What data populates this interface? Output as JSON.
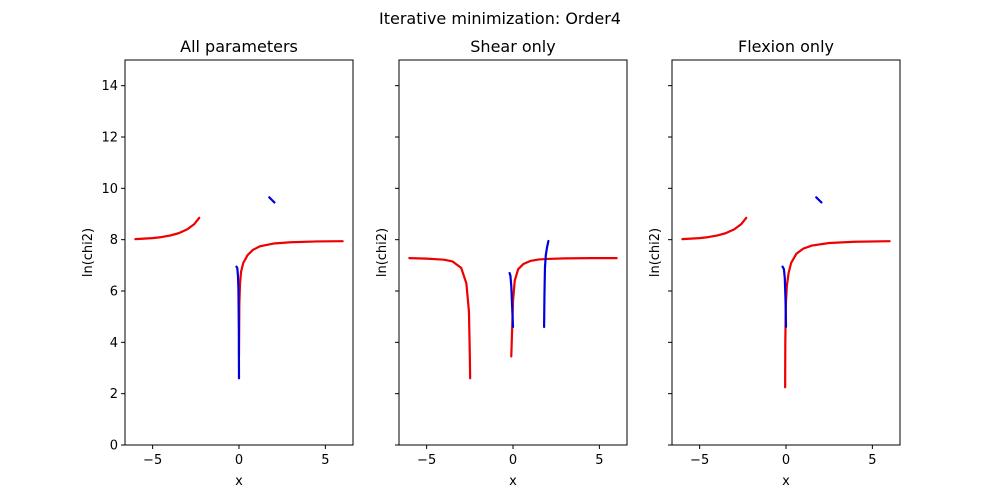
{
  "figure": {
    "title": "Iterative minimization: Order4",
    "colors": {
      "red": "#ee0000",
      "blue": "#0000dd",
      "axis": "#000000",
      "background": "#ffffff"
    }
  },
  "chart_data": [
    {
      "type": "line",
      "title": "All parameters",
      "xlabel": "x",
      "ylabel": "ln(chi2)",
      "xlim": [
        -6.6,
        6.6
      ],
      "ylim": [
        0,
        15
      ],
      "xticks": [
        -5,
        0,
        5
      ],
      "yticks": [
        0,
        2,
        4,
        6,
        8,
        10,
        12,
        14
      ],
      "show_yticklabels": true,
      "grid": false,
      "series": [
        {
          "color": "red",
          "points": [
            [
              -6.0,
              8.02
            ],
            [
              -5.5,
              8.04
            ],
            [
              -5.0,
              8.06
            ],
            [
              -4.5,
              8.1
            ],
            [
              -4.0,
              8.16
            ],
            [
              -3.5,
              8.25
            ],
            [
              -3.0,
              8.4
            ],
            [
              -2.6,
              8.6
            ],
            [
              -2.3,
              8.85
            ]
          ]
        },
        {
          "color": "red",
          "points": [
            [
              0.0,
              3.5
            ],
            [
              0.02,
              5.5
            ],
            [
              0.06,
              6.3
            ],
            [
              0.12,
              6.75
            ],
            [
              0.25,
              7.1
            ],
            [
              0.5,
              7.4
            ],
            [
              0.8,
              7.6
            ],
            [
              1.2,
              7.74
            ],
            [
              2.0,
              7.85
            ],
            [
              3.0,
              7.9
            ],
            [
              4.5,
              7.93
            ],
            [
              6.0,
              7.94
            ]
          ]
        },
        {
          "color": "blue",
          "points": [
            [
              -0.15,
              6.95
            ],
            [
              -0.1,
              6.9
            ],
            [
              -0.06,
              6.6
            ],
            [
              -0.03,
              6.0
            ],
            [
              -0.01,
              4.5
            ],
            [
              0.0,
              2.6
            ]
          ]
        },
        {
          "color": "blue",
          "points": [
            [
              1.75,
              9.65
            ],
            [
              1.9,
              9.55
            ],
            [
              2.05,
              9.45
            ]
          ]
        }
      ]
    },
    {
      "type": "line",
      "title": "Shear only",
      "xlabel": "x",
      "ylabel": "ln(chi2)",
      "xlim": [
        -6.6,
        6.6
      ],
      "ylim": [
        0,
        15
      ],
      "xticks": [
        -5,
        0,
        5
      ],
      "yticks": [
        0,
        2,
        4,
        6,
        8,
        10,
        12,
        14
      ],
      "show_yticklabels": false,
      "grid": false,
      "series": [
        {
          "color": "red",
          "points": [
            [
              -6.0,
              7.28
            ],
            [
              -5.0,
              7.26
            ],
            [
              -4.0,
              7.22
            ],
            [
              -3.5,
              7.15
            ],
            [
              -3.0,
              6.9
            ],
            [
              -2.7,
              6.3
            ],
            [
              -2.55,
              5.2
            ],
            [
              -2.5,
              3.5
            ],
            [
              -2.48,
              2.6
            ]
          ]
        },
        {
          "color": "red",
          "points": [
            [
              -0.1,
              3.45
            ],
            [
              -0.05,
              4.5
            ],
            [
              0.0,
              5.6
            ],
            [
              0.1,
              6.4
            ],
            [
              0.3,
              6.85
            ],
            [
              0.6,
              7.05
            ],
            [
              1.0,
              7.17
            ],
            [
              1.5,
              7.23
            ],
            [
              2.0,
              7.25
            ],
            [
              3.0,
              7.27
            ],
            [
              4.5,
              7.28
            ],
            [
              6.0,
              7.28
            ]
          ]
        },
        {
          "color": "blue",
          "points": [
            [
              -0.2,
              6.7
            ],
            [
              -0.15,
              6.6
            ],
            [
              -0.1,
              6.2
            ],
            [
              -0.05,
              5.4
            ],
            [
              0.0,
              4.6
            ]
          ]
        },
        {
          "color": "blue",
          "points": [
            [
              1.8,
              4.6
            ],
            [
              1.82,
              5.8
            ],
            [
              1.85,
              6.9
            ],
            [
              1.9,
              7.4
            ],
            [
              1.97,
              7.7
            ],
            [
              2.05,
              7.95
            ]
          ]
        }
      ]
    },
    {
      "type": "line",
      "title": "Flexion only",
      "xlabel": "x",
      "ylabel": "ln(chi2)",
      "xlim": [
        -6.6,
        6.6
      ],
      "ylim": [
        0,
        15
      ],
      "xticks": [
        -5,
        0,
        5
      ],
      "yticks": [
        0,
        2,
        4,
        6,
        8,
        10,
        12,
        14
      ],
      "show_yticklabels": false,
      "grid": false,
      "series": [
        {
          "color": "red",
          "points": [
            [
              -6.0,
              8.02
            ],
            [
              -5.5,
              8.04
            ],
            [
              -5.0,
              8.06
            ],
            [
              -4.5,
              8.1
            ],
            [
              -4.0,
              8.16
            ],
            [
              -3.5,
              8.25
            ],
            [
              -3.0,
              8.4
            ],
            [
              -2.6,
              8.6
            ],
            [
              -2.3,
              8.85
            ]
          ]
        },
        {
          "color": "red",
          "points": [
            [
              -0.05,
              2.25
            ],
            [
              -0.04,
              4.0
            ],
            [
              -0.02,
              5.0
            ],
            [
              0.0,
              5.6
            ],
            [
              0.05,
              6.2
            ],
            [
              0.15,
              6.7
            ],
            [
              0.3,
              7.1
            ],
            [
              0.6,
              7.45
            ],
            [
              1.0,
              7.65
            ],
            [
              1.5,
              7.77
            ],
            [
              2.5,
              7.87
            ],
            [
              4.0,
              7.92
            ],
            [
              6.0,
              7.94
            ]
          ]
        },
        {
          "color": "blue",
          "points": [
            [
              -0.2,
              6.95
            ],
            [
              -0.12,
              6.85
            ],
            [
              -0.07,
              6.5
            ],
            [
              -0.03,
              5.7
            ],
            [
              0.0,
              4.6
            ]
          ]
        },
        {
          "color": "blue",
          "points": [
            [
              1.75,
              9.65
            ],
            [
              1.9,
              9.55
            ],
            [
              2.05,
              9.45
            ]
          ]
        }
      ]
    }
  ]
}
